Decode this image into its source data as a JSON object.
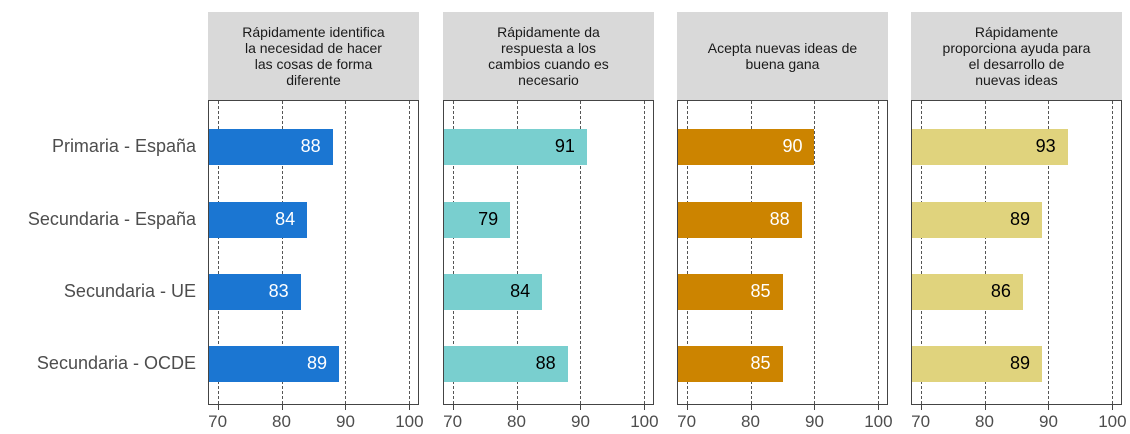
{
  "chart_data": {
    "type": "bar",
    "orientation": "horizontal",
    "categories": [
      "Primaria - España",
      "Secundaria - España",
      "Secundaria - UE",
      "Secundaria - OCDE"
    ],
    "xlim": [
      68.5,
      101.5
    ],
    "xticks": [
      70,
      80,
      90,
      100
    ],
    "grid": true,
    "series": [
      {
        "name": "Rápidamente identifica\nla necesidad de hacer\nlas cosas de forma\ndiferente",
        "color": "#1b76d2",
        "label_color": "#ffffff",
        "values": [
          88,
          84,
          83,
          89
        ]
      },
      {
        "name": "Rápidamente da\nrespuesta a los\ncambios cuando es\nnecesario",
        "color": "#79cfcf",
        "label_color": "#000000",
        "values": [
          91,
          79,
          84,
          88
        ]
      },
      {
        "name": "Acepta nuevas ideas de\nbuena gana",
        "color": "#cc8400",
        "label_color": "#ffffff",
        "values": [
          90,
          88,
          85,
          85
        ]
      },
      {
        "name": "Rápidamente\nproporciona ayuda para\nel desarrollo de\nnuevas ideas",
        "color": "#e0d37d",
        "label_color": "#000000",
        "values": [
          93,
          89,
          86,
          89
        ]
      }
    ]
  }
}
